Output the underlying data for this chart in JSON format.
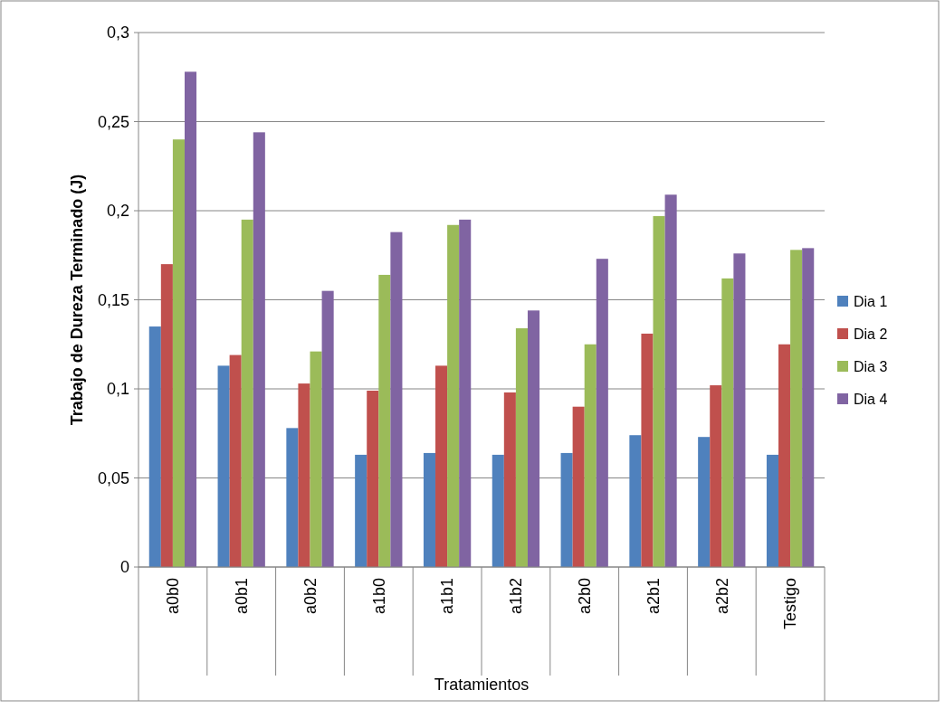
{
  "chart_data": {
    "type": "bar",
    "xlabel": "Tratamientos",
    "ylabel": "Trabajo de Dureza Terminado (J)",
    "categories": [
      "a0b0",
      "a0b1",
      "a0b2",
      "a1b0",
      "a1b1",
      "a1b2",
      "a2b0",
      "a2b1",
      "a2b2",
      "Testigo"
    ],
    "series": [
      {
        "name": "Dia 1",
        "color": "#4f81bd",
        "values": [
          0.135,
          0.113,
          0.078,
          0.063,
          0.064,
          0.063,
          0.064,
          0.074,
          0.073,
          0.063
        ]
      },
      {
        "name": "Dia 2",
        "color": "#c0504d",
        "values": [
          0.17,
          0.119,
          0.103,
          0.099,
          0.113,
          0.098,
          0.09,
          0.131,
          0.102,
          0.125
        ]
      },
      {
        "name": "Dia 3",
        "color": "#9bbb59",
        "values": [
          0.24,
          0.195,
          0.121,
          0.164,
          0.192,
          0.134,
          0.125,
          0.197,
          0.162,
          0.178
        ]
      },
      {
        "name": "Dia 4",
        "color": "#8064a2",
        "values": [
          0.278,
          0.244,
          0.155,
          0.188,
          0.195,
          0.144,
          0.173,
          0.209,
          0.176,
          0.179
        ]
      }
    ],
    "ylim": [
      0,
      0.3
    ],
    "yticks": [
      0,
      {
        "value": 0.05,
        "label": "0,05"
      },
      {
        "value": 0.1,
        "label": "0,1"
      },
      {
        "value": 0.15,
        "label": "0,15"
      },
      {
        "value": 0.2,
        "label": "0,2"
      },
      {
        "value": 0.25,
        "label": "0,25"
      },
      {
        "value": 0.3,
        "label": "0,3"
      }
    ],
    "grid": "y",
    "legend": "right"
  }
}
